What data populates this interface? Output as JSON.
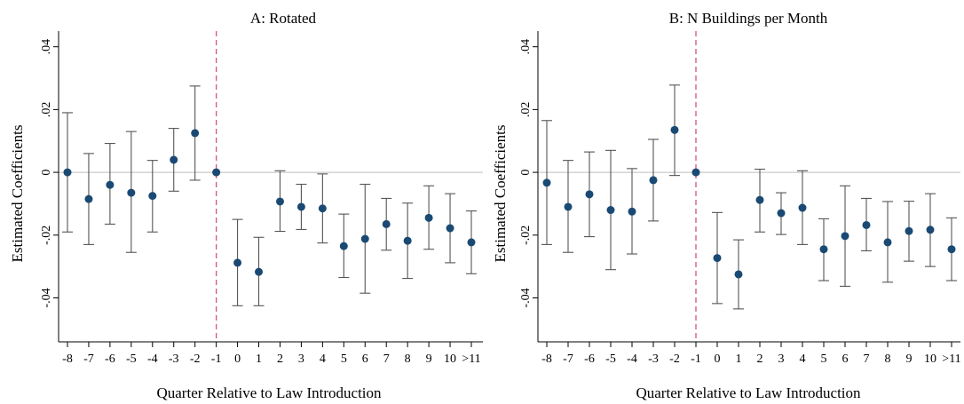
{
  "colors": {
    "point": "#1a4a73",
    "errorbar": "#555555",
    "zero_line": "#bdbdbd",
    "ref_line": "#d0528a",
    "axis": "#000000"
  },
  "chart_data": [
    {
      "type": "scatter",
      "title": "A: Rotated",
      "xlabel": "Quarter Relative to Law Introduction",
      "ylabel": "Estimated Coefficients",
      "categories": [
        "-8",
        "-7",
        "-6",
        "-5",
        "-4",
        "-3",
        "-2",
        "-1",
        "0",
        "1",
        "2",
        "3",
        "4",
        "5",
        "6",
        "7",
        "8",
        "9",
        "10",
        ">11"
      ],
      "yticks": [
        -0.04,
        -0.02,
        0,
        0.02,
        0.04
      ],
      "ytick_labels": [
        "-.04",
        "-.02",
        "0",
        ".02",
        ".04"
      ],
      "ylim": [
        -0.054,
        0.045
      ],
      "reference_line_at": "-1",
      "grid": false,
      "series": [
        {
          "estimate": [
            0.0,
            -0.0085,
            -0.004,
            -0.0065,
            -0.0075,
            0.004,
            0.0125,
            0.0,
            -0.0288,
            -0.0317,
            -0.0093,
            -0.011,
            -0.0115,
            -0.0235,
            -0.0212,
            -0.0165,
            -0.0218,
            -0.0145,
            -0.0178,
            -0.0223
          ],
          "ci_low": [
            -0.019,
            -0.023,
            -0.0165,
            -0.0255,
            -0.019,
            -0.006,
            -0.0025,
            0.0,
            -0.0425,
            -0.0425,
            -0.0188,
            -0.0182,
            -0.0225,
            -0.0335,
            -0.0385,
            -0.0248,
            -0.0338,
            -0.0245,
            -0.0288,
            -0.0323
          ],
          "ci_high": [
            0.019,
            0.006,
            0.0092,
            0.013,
            0.0038,
            0.014,
            0.0275,
            0.0,
            -0.015,
            -0.0207,
            0.0005,
            -0.0038,
            -0.0005,
            -0.0133,
            -0.0038,
            -0.0083,
            -0.0098,
            -0.0043,
            -0.0068,
            -0.0123
          ]
        }
      ]
    },
    {
      "type": "scatter",
      "title": "B: N Buildings per Month",
      "xlabel": "Quarter Relative to Law Introduction",
      "ylabel": "Estimated Coefficients",
      "categories": [
        "-8",
        "-7",
        "-6",
        "-5",
        "-4",
        "-3",
        "-2",
        "-1",
        "0",
        "1",
        "2",
        "3",
        "4",
        "5",
        "6",
        "7",
        "8",
        "9",
        "10",
        ">11"
      ],
      "yticks": [
        -0.04,
        -0.02,
        0,
        0.02,
        0.04
      ],
      "ytick_labels": [
        "-.04",
        "-.02",
        "0",
        ".02",
        ".04"
      ],
      "ylim": [
        -0.054,
        0.045
      ],
      "reference_line_at": "-1",
      "grid": false,
      "series": [
        {
          "estimate": [
            -0.0033,
            -0.011,
            -0.007,
            -0.012,
            -0.0125,
            -0.0025,
            0.0135,
            0.0,
            -0.0273,
            -0.0325,
            -0.0088,
            -0.013,
            -0.0113,
            -0.0245,
            -0.0203,
            -0.0168,
            -0.0223,
            -0.0187,
            -0.0183,
            -0.0245
          ],
          "ci_low": [
            -0.023,
            -0.0255,
            -0.0205,
            -0.031,
            -0.026,
            -0.0155,
            -0.001,
            0.0,
            -0.0418,
            -0.0435,
            -0.019,
            -0.0198,
            -0.023,
            -0.0345,
            -0.0363,
            -0.025,
            -0.035,
            -0.0283,
            -0.03,
            -0.0345
          ],
          "ci_high": [
            0.0165,
            0.0038,
            0.0065,
            0.007,
            0.0012,
            0.0105,
            0.0278,
            0.0,
            -0.0128,
            -0.0215,
            0.001,
            -0.0065,
            0.0005,
            -0.0148,
            -0.0043,
            -0.0083,
            -0.0093,
            -0.0092,
            -0.0068,
            -0.0145
          ]
        }
      ]
    }
  ]
}
